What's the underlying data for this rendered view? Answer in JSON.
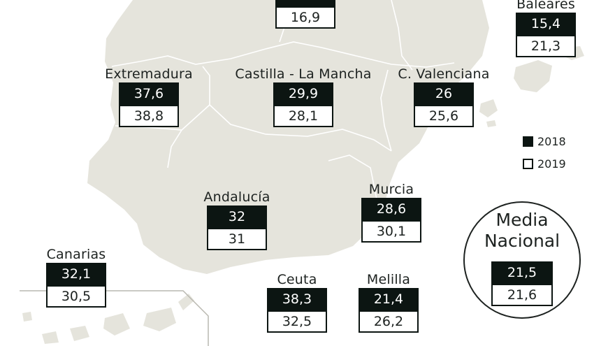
{
  "colors": {
    "land": "#e5e4dc",
    "dark_box": "#0c1512",
    "border_line": "#ffffff"
  },
  "legend": {
    "y2018": "2018",
    "y2019": "2019"
  },
  "regions": {
    "castilla_leon": {
      "name": "",
      "v2018": "",
      "v2019": "16,9"
    },
    "baleares": {
      "name": "Baleares",
      "v2018": "15,4",
      "v2019": "21,3"
    },
    "extremadura": {
      "name": "Extremadura",
      "v2018": "37,6",
      "v2019": "38,8"
    },
    "castilla_la_mancha": {
      "name": "Castilla - La Mancha",
      "v2018": "29,9",
      "v2019": "28,1"
    },
    "c_valenciana": {
      "name": "C. Valenciana",
      "v2018": "26",
      "v2019": "25,6"
    },
    "andalucia": {
      "name": "Andalucía",
      "v2018": "32",
      "v2019": "31"
    },
    "murcia": {
      "name": "Murcia",
      "v2018": "28,6",
      "v2019": "30,1"
    },
    "canarias": {
      "name": "Canarias",
      "v2018": "32,1",
      "v2019": "30,5"
    },
    "ceuta": {
      "name": "Ceuta",
      "v2018": "38,3",
      "v2019": "32,5"
    },
    "melilla": {
      "name": "Melilla",
      "v2018": "21,4",
      "v2019": "26,2"
    }
  },
  "media_nacional": {
    "title_line1": "Media",
    "title_line2": "Nacional",
    "v2018": "21,5",
    "v2019": "21,6"
  }
}
